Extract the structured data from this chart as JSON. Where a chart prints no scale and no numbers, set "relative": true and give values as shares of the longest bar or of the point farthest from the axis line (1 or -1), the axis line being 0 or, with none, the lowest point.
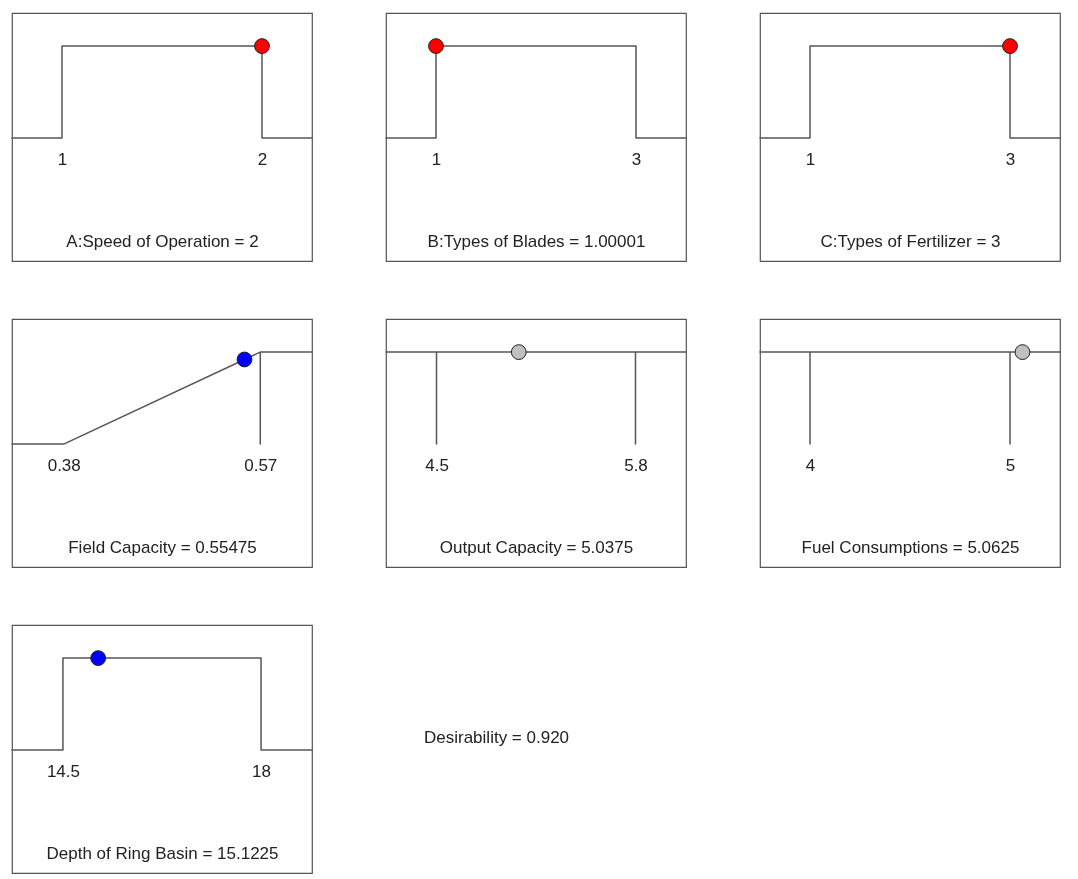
{
  "chart_data": [
    {
      "type": "line",
      "xlabel": "A:Speed of Operation = 2",
      "relative": true,
      "xlim": [
        0.75,
        2.25
      ],
      "xticks": [
        1,
        2
      ],
      "series": [
        {
          "color": "#555555",
          "x": [
            0.75,
            1,
            1,
            2,
            2,
            2.25
          ],
          "values": [
            0,
            0,
            1,
            1,
            0,
            0
          ]
        },
        {
          "type": "scatter",
          "color": "#ff0000",
          "x": [
            2
          ],
          "values": [
            1
          ]
        }
      ]
    },
    {
      "type": "line",
      "xlabel": "B:Types of Blades = 1.00001",
      "relative": true,
      "xlim": [
        0.5,
        3.5
      ],
      "xticks": [
        1,
        3
      ],
      "series": [
        {
          "color": "#555555",
          "x": [
            0.5,
            1,
            1,
            3,
            3,
            3.5
          ],
          "values": [
            0,
            0,
            1,
            1,
            0,
            0
          ]
        },
        {
          "type": "scatter",
          "color": "#ff0000",
          "x": [
            1.00001
          ],
          "values": [
            1
          ]
        }
      ]
    },
    {
      "type": "line",
      "xlabel": "C:Types of Fertilizer = 3",
      "relative": true,
      "xlim": [
        0.5,
        3.5
      ],
      "xticks": [
        1,
        3
      ],
      "series": [
        {
          "color": "#555555",
          "x": [
            0.5,
            1,
            1,
            3,
            3,
            3.5
          ],
          "values": [
            0,
            0,
            1,
            1,
            0,
            0
          ]
        },
        {
          "type": "scatter",
          "color": "#ff0000",
          "x": [
            3
          ],
          "values": [
            1
          ]
        }
      ]
    },
    {
      "type": "line",
      "xlabel": "Field Capacity = 0.55475",
      "relative": true,
      "xlim": [
        0.33,
        0.62
      ],
      "xticks": [
        0.38,
        0.57
      ],
      "series": [
        {
          "color": "#555555",
          "x": [
            0.33,
            0.38,
            0.57,
            0.57,
            0.57,
            0.62
          ],
          "values": [
            0,
            0,
            1,
            0,
            1,
            1
          ]
        },
        {
          "type": "scatter",
          "color": "#0000ff",
          "x": [
            0.55475
          ],
          "values": [
            0.92
          ]
        }
      ]
    },
    {
      "type": "line",
      "xlabel": "Output Capacity = 5.0375",
      "relative": true,
      "xlim": [
        4.17,
        6.13
      ],
      "xticks": [
        {
          "value": 4.5,
          "label": "4.5"
        },
        {
          "value": 5.8,
          "label": "5.8"
        }
      ],
      "series": [
        {
          "color": "#555555",
          "x": [
            4.17,
            4.5,
            4.5,
            4.5,
            5.8,
            5.8,
            5.8,
            6.13
          ],
          "values": [
            1,
            1,
            0,
            1,
            1,
            0,
            1,
            1
          ]
        },
        {
          "type": "scatter",
          "color": "#c0c0c0",
          "x": [
            5.0375
          ],
          "values": [
            1
          ]
        }
      ]
    },
    {
      "type": "line",
      "xlabel": "Fuel Consumptions = 5.0625",
      "relative": true,
      "xlim": [
        3.75,
        5.25
      ],
      "xticks": [
        4,
        5
      ],
      "series": [
        {
          "color": "#555555",
          "x": [
            3.75,
            4,
            4,
            4,
            5,
            5,
            5,
            5.25
          ],
          "values": [
            1,
            1,
            0,
            1,
            1,
            0,
            1,
            1
          ]
        },
        {
          "type": "scatter",
          "color": "#c0c0c0",
          "x": [
            5.0625
          ],
          "values": [
            1
          ]
        }
      ]
    },
    {
      "type": "line",
      "xlabel": "Depth of Ring Basin = 15.1225",
      "relative": true,
      "xlim": [
        13.6,
        18.9
      ],
      "xticks": [
        14.5,
        18
      ],
      "series": [
        {
          "color": "#555555",
          "x": [
            13.6,
            14.5,
            14.5,
            18,
            18,
            18.9
          ],
          "values": [
            0,
            0,
            1,
            1,
            0,
            0
          ]
        },
        {
          "type": "scatter",
          "color": "#0000ff",
          "x": [
            15.1225
          ],
          "values": [
            1
          ]
        }
      ]
    },
    {
      "type": "other",
      "annotations": [
        "Desirability = 0.920"
      ]
    }
  ]
}
